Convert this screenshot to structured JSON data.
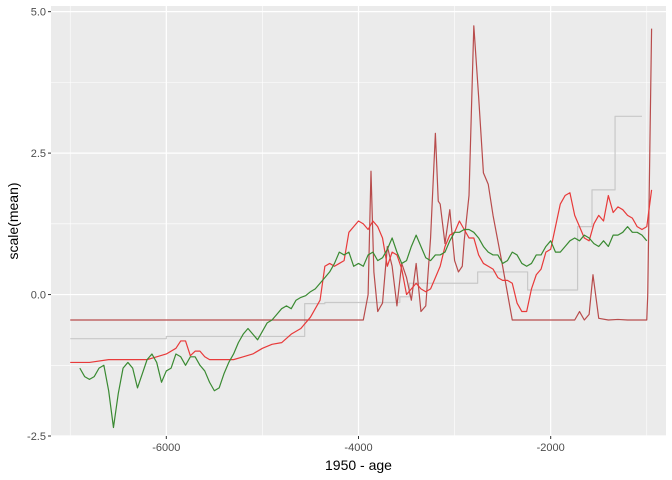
{
  "chart_data": {
    "type": "line",
    "xlabel": "1950 - age",
    "ylabel": "scale(mean)",
    "xlim": [
      -7200,
      -800
    ],
    "ylim": [
      -2.5,
      5.1
    ],
    "x_ticks": [
      -6000,
      -4000,
      -2000
    ],
    "x_tick_labels": [
      "-6000",
      "-4000",
      "-2000"
    ],
    "y_ticks": [
      -2.5,
      0.0,
      2.5,
      5.0
    ],
    "y_tick_labels": [
      "-2.5",
      "0.0",
      "2.5",
      "5.0"
    ],
    "grid": true,
    "background": "#ebebeb",
    "series": [
      {
        "color": "#c8c8c8",
        "x": [
          -7000,
          -6000,
          -6000,
          -4560,
          -4560,
          -4350,
          -4350,
          -3570,
          -3570,
          -3470,
          -3470,
          -2760,
          -2760,
          -2240,
          -2240,
          -1720,
          -1720,
          -1570,
          -1570,
          -1330,
          -1330,
          -1050
        ],
        "y": [
          -0.78,
          -0.78,
          -0.74,
          -0.74,
          -0.16,
          -0.16,
          -0.14,
          -0.14,
          -0.04,
          -0.04,
          0.2,
          0.2,
          0.4,
          0.4,
          0.08,
          0.08,
          1.2,
          1.2,
          1.85,
          1.85,
          3.15,
          3.15
        ]
      },
      {
        "color": "#b84c4c",
        "x": [
          -7000,
          -5000,
          -4000,
          -3950,
          -3900,
          -3870,
          -3840,
          -3800,
          -3750,
          -3700,
          -3650,
          -3600,
          -3550,
          -3500,
          -3450,
          -3400,
          -3350,
          -3300,
          -3250,
          -3200,
          -3170,
          -3150,
          -3100,
          -3050,
          -3000,
          -2960,
          -2920,
          -2900,
          -2850,
          -2800,
          -2750,
          -2700,
          -2650,
          -2600,
          -2500,
          -2400,
          -2300,
          -2000,
          -1750,
          -1700,
          -1650,
          -1600,
          -1560,
          -1500,
          -1400,
          -1300,
          -1200,
          -1000,
          -990,
          -950
        ],
        "y": [
          -0.45,
          -0.45,
          -0.45,
          -0.45,
          0.0,
          2.18,
          0.4,
          -0.3,
          -0.15,
          0.85,
          0.5,
          -0.2,
          0.55,
          0.3,
          -0.1,
          0.55,
          -0.3,
          -0.2,
          1.0,
          2.85,
          1.65,
          1.6,
          0.9,
          1.5,
          0.6,
          0.4,
          0.5,
          0.95,
          1.75,
          4.75,
          3.5,
          2.15,
          1.95,
          1.4,
          0.5,
          -0.45,
          -0.45,
          -0.45,
          -0.45,
          -0.3,
          -0.45,
          -0.35,
          0.35,
          -0.42,
          -0.45,
          -0.44,
          -0.45,
          -0.45,
          0.0,
          4.7
        ]
      },
      {
        "color": "#e83a3a",
        "x": [
          -7000,
          -6800,
          -6600,
          -6400,
          -6300,
          -6200,
          -6100,
          -6000,
          -5900,
          -5850,
          -5800,
          -5750,
          -5700,
          -5650,
          -5600,
          -5550,
          -5500,
          -5400,
          -5300,
          -5200,
          -5100,
          -5000,
          -4900,
          -4800,
          -4700,
          -4600,
          -4500,
          -4400,
          -4350,
          -4300,
          -4250,
          -4200,
          -4150,
          -4100,
          -4050,
          -4000,
          -3950,
          -3900,
          -3850,
          -3800,
          -3750,
          -3700,
          -3650,
          -3600,
          -3550,
          -3500,
          -3450,
          -3400,
          -3350,
          -3300,
          -3250,
          -3200,
          -3150,
          -3100,
          -3050,
          -3000,
          -2950,
          -2900,
          -2850,
          -2800,
          -2750,
          -2700,
          -2650,
          -2600,
          -2550,
          -2500,
          -2450,
          -2400,
          -2350,
          -2300,
          -2250,
          -2200,
          -2150,
          -2100,
          -2050,
          -2000,
          -1950,
          -1900,
          -1850,
          -1800,
          -1750,
          -1700,
          -1650,
          -1600,
          -1550,
          -1500,
          -1450,
          -1400,
          -1350,
          -1300,
          -1250,
          -1200,
          -1150,
          -1100,
          -1050,
          -1000,
          -950
        ],
        "y": [
          -1.2,
          -1.2,
          -1.15,
          -1.15,
          -1.15,
          -1.15,
          -1.1,
          -1.05,
          -0.95,
          -0.82,
          -0.82,
          -1.08,
          -1.0,
          -1.0,
          -1.1,
          -1.15,
          -1.15,
          -1.15,
          -1.15,
          -1.1,
          -1.05,
          -0.95,
          -0.88,
          -0.85,
          -0.7,
          -0.6,
          -0.4,
          -0.1,
          0.5,
          0.55,
          0.5,
          0.55,
          0.6,
          1.1,
          1.2,
          1.3,
          1.25,
          1.15,
          1.3,
          1.2,
          1.0,
          0.5,
          0.75,
          0.7,
          0.45,
          0.0,
          0.1,
          0.2,
          0.1,
          0.05,
          0.1,
          0.3,
          0.5,
          0.85,
          1.05,
          1.1,
          1.3,
          1.15,
          1.0,
          1.0,
          0.7,
          0.55,
          0.5,
          0.45,
          0.3,
          0.25,
          0.25,
          0.2,
          -0.15,
          -0.3,
          -0.3,
          0.1,
          0.35,
          0.45,
          0.75,
          0.8,
          1.2,
          1.6,
          1.75,
          1.8,
          1.4,
          1.2,
          1.0,
          0.95,
          1.25,
          1.4,
          1.3,
          1.75,
          1.45,
          1.55,
          1.5,
          1.4,
          1.35,
          1.2,
          1.15,
          1.2,
          1.85
        ]
      },
      {
        "color": "#3a8a32",
        "x": [
          -6900,
          -6850,
          -6800,
          -6750,
          -6700,
          -6650,
          -6600,
          -6550,
          -6500,
          -6450,
          -6400,
          -6350,
          -6300,
          -6250,
          -6200,
          -6150,
          -6100,
          -6050,
          -6000,
          -5950,
          -5900,
          -5850,
          -5800,
          -5750,
          -5700,
          -5650,
          -5600,
          -5550,
          -5500,
          -5450,
          -5400,
          -5350,
          -5300,
          -5250,
          -5200,
          -5150,
          -5100,
          -5050,
          -5000,
          -4950,
          -4900,
          -4850,
          -4800,
          -4750,
          -4700,
          -4650,
          -4600,
          -4550,
          -4500,
          -4450,
          -4400,
          -4350,
          -4300,
          -4250,
          -4200,
          -4150,
          -4100,
          -4050,
          -4000,
          -3950,
          -3900,
          -3850,
          -3800,
          -3750,
          -3700,
          -3650,
          -3600,
          -3550,
          -3500,
          -3450,
          -3400,
          -3350,
          -3300,
          -3250,
          -3200,
          -3150,
          -3100,
          -3050,
          -3000,
          -2950,
          -2900,
          -2850,
          -2800,
          -2750,
          -2700,
          -2650,
          -2600,
          -2550,
          -2500,
          -2450,
          -2400,
          -2350,
          -2300,
          -2250,
          -2200,
          -2150,
          -2100,
          -2050,
          -2000,
          -1950,
          -1900,
          -1850,
          -1800,
          -1750,
          -1700,
          -1650,
          -1600,
          -1550,
          -1500,
          -1450,
          -1400,
          -1350,
          -1300,
          -1250,
          -1200,
          -1150,
          -1100,
          -1050,
          -1000
        ],
        "y": [
          -1.3,
          -1.45,
          -1.5,
          -1.45,
          -1.3,
          -1.25,
          -1.7,
          -2.35,
          -1.75,
          -1.3,
          -1.2,
          -1.3,
          -1.65,
          -1.4,
          -1.15,
          -1.05,
          -1.2,
          -1.55,
          -1.35,
          -1.3,
          -1.05,
          -1.1,
          -1.25,
          -1.1,
          -1.1,
          -1.25,
          -1.35,
          -1.55,
          -1.7,
          -1.65,
          -1.4,
          -1.2,
          -1.05,
          -0.85,
          -0.7,
          -0.6,
          -0.7,
          -0.8,
          -0.65,
          -0.5,
          -0.45,
          -0.35,
          -0.25,
          -0.2,
          -0.25,
          -0.1,
          -0.05,
          -0.02,
          0.05,
          0.1,
          0.2,
          0.3,
          0.4,
          0.55,
          0.75,
          0.7,
          0.75,
          0.5,
          0.55,
          0.5,
          0.7,
          0.75,
          0.6,
          0.65,
          0.8,
          1.0,
          0.75,
          0.55,
          0.6,
          0.85,
          1.05,
          0.85,
          0.65,
          0.6,
          0.7,
          0.7,
          0.75,
          0.95,
          1.1,
          1.1,
          1.15,
          1.15,
          1.1,
          1.0,
          0.85,
          0.75,
          0.7,
          0.7,
          0.55,
          0.6,
          0.75,
          0.7,
          0.55,
          0.5,
          0.55,
          0.7,
          0.7,
          0.85,
          0.95,
          0.75,
          0.75,
          0.85,
          0.95,
          1.0,
          0.95,
          1.05,
          1.0,
          0.9,
          0.85,
          0.95,
          0.85,
          1.05,
          1.05,
          1.1,
          1.2,
          1.1,
          1.1,
          1.05,
          0.95
        ]
      }
    ]
  }
}
